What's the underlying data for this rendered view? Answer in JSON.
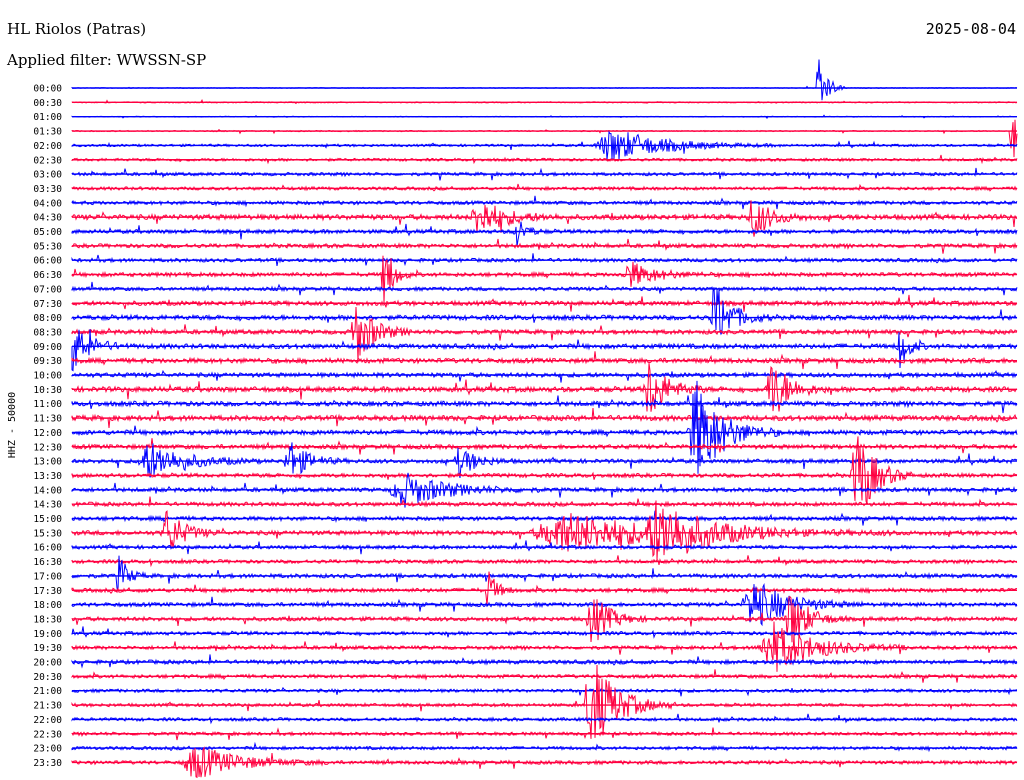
{
  "header": {
    "station": "HL Riolos (Patras)",
    "date": "2025-08-04",
    "filter": "Applied filter: WWSSN-SP"
  },
  "chart_data": {
    "type": "line",
    "title": "HL Riolos (Patras)",
    "subtitle": "Applied filter: WWSSN-SP",
    "ylabel": "HHZ - 50000",
    "colors": {
      "even_rows": "#0000ff",
      "odd_rows": "#ff0040"
    },
    "rows": [
      "00:00",
      "00:30",
      "01:00",
      "01:30",
      "02:00",
      "02:30",
      "03:00",
      "03:30",
      "04:00",
      "04:30",
      "05:00",
      "05:30",
      "06:00",
      "06:30",
      "07:00",
      "07:30",
      "08:00",
      "08:30",
      "09:00",
      "09:30",
      "10:00",
      "10:30",
      "11:00",
      "11:30",
      "12:00",
      "12:30",
      "13:00",
      "13:30",
      "14:00",
      "14:30",
      "15:00",
      "15:30",
      "16:00",
      "16:30",
      "17:00",
      "17:30",
      "18:00",
      "18:30",
      "19:00",
      "19:30",
      "20:00",
      "20:30",
      "21:00",
      "21:30",
      "22:00",
      "22:30",
      "23:00",
      "23:30"
    ],
    "noise_level": [
      0.2,
      0.3,
      0.2,
      0.3,
      0.6,
      0.7,
      0.8,
      0.8,
      0.9,
      1.3,
      1.0,
      1.0,
      0.9,
      1.0,
      0.9,
      1.1,
      1.2,
      1.1,
      1.2,
      1.2,
      1.1,
      1.3,
      1.2,
      1.3,
      1.2,
      1.1,
      1.0,
      1.0,
      1.0,
      1.0,
      1.0,
      1.1,
      0.9,
      0.9,
      1.0,
      1.0,
      1.0,
      1.0,
      0.9,
      0.9,
      1.0,
      0.9,
      0.8,
      0.8,
      0.8,
      0.8,
      0.8,
      0.9
    ],
    "events": [
      {
        "row": "00:00",
        "t": 0.79,
        "amp": 1.6,
        "dur": 0.01
      },
      {
        "row": "01:30",
        "t": 0.995,
        "amp": 2.0,
        "dur": 0.01
      },
      {
        "row": "02:00",
        "t": 0.57,
        "amp": 0.8,
        "dur": 0.06
      },
      {
        "row": "04:30",
        "t": 0.43,
        "amp": 0.9,
        "dur": 0.03
      },
      {
        "row": "04:30",
        "t": 0.72,
        "amp": 1.0,
        "dur": 0.02
      },
      {
        "row": "05:00",
        "t": 0.47,
        "amp": 0.8,
        "dur": 0.01
      },
      {
        "row": "06:30",
        "t": 0.33,
        "amp": 1.8,
        "dur": 0.01
      },
      {
        "row": "06:30",
        "t": 0.59,
        "amp": 0.6,
        "dur": 0.03
      },
      {
        "row": "08:00",
        "t": 0.68,
        "amp": 1.6,
        "dur": 0.02
      },
      {
        "row": "08:30",
        "t": 0.3,
        "amp": 1.6,
        "dur": 0.02
      },
      {
        "row": "09:00",
        "t": 0.0,
        "amp": 1.2,
        "dur": 0.02
      },
      {
        "row": "09:00",
        "t": 0.875,
        "amp": 1.2,
        "dur": 0.01
      },
      {
        "row": "10:30",
        "t": 0.61,
        "amp": 1.5,
        "dur": 0.02
      },
      {
        "row": "10:30",
        "t": 0.74,
        "amp": 1.5,
        "dur": 0.02
      },
      {
        "row": "12:00",
        "t": 0.66,
        "amp": 2.5,
        "dur": 0.03
      },
      {
        "row": "13:00",
        "t": 0.08,
        "amp": 0.9,
        "dur": 0.04
      },
      {
        "row": "13:00",
        "t": 0.23,
        "amp": 1.0,
        "dur": 0.02
      },
      {
        "row": "13:00",
        "t": 0.41,
        "amp": 0.7,
        "dur": 0.02
      },
      {
        "row": "13:30",
        "t": 0.83,
        "amp": 2.5,
        "dur": 0.02
      },
      {
        "row": "14:00",
        "t": 0.35,
        "amp": 0.8,
        "dur": 0.05
      },
      {
        "row": "15:30",
        "t": 0.1,
        "amp": 1.1,
        "dur": 0.02
      },
      {
        "row": "15:30",
        "t": 0.52,
        "amp": 0.9,
        "dur": 0.12
      },
      {
        "row": "15:30",
        "t": 0.62,
        "amp": 1.3,
        "dur": 0.05
      },
      {
        "row": "17:00",
        "t": 0.05,
        "amp": 1.0,
        "dur": 0.01
      },
      {
        "row": "17:30",
        "t": 0.44,
        "amp": 1.0,
        "dur": 0.01
      },
      {
        "row": "18:00",
        "t": 0.72,
        "amp": 1.2,
        "dur": 0.04
      },
      {
        "row": "18:30",
        "t": 0.55,
        "amp": 1.3,
        "dur": 0.02
      },
      {
        "row": "18:30",
        "t": 0.76,
        "amp": 1.5,
        "dur": 0.02
      },
      {
        "row": "19:30",
        "t": 0.74,
        "amp": 1.2,
        "dur": 0.05
      },
      {
        "row": "21:30",
        "t": 0.55,
        "amp": 2.2,
        "dur": 0.03
      },
      {
        "row": "23:30",
        "t": 0.13,
        "amp": 0.8,
        "dur": 0.05
      }
    ]
  }
}
